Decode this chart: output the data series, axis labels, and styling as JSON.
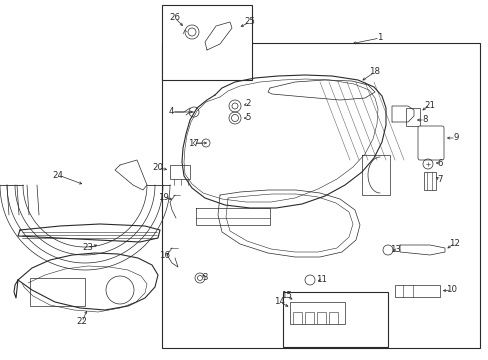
{
  "bg_color": "#ffffff",
  "line_color": "#2a2a2a",
  "figsize": [
    4.89,
    3.6
  ],
  "dpi": 100
}
